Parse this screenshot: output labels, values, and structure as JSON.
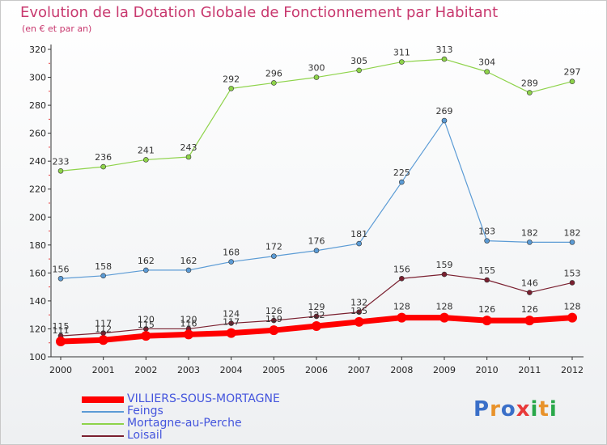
{
  "title": "Evolution de la Dotation Globale de Fonctionnement par Habitant",
  "subtitle": "(en € et par an)",
  "logo": {
    "text": "Proxiti",
    "letter_colors": [
      "#3a6fc8",
      "#e8922a",
      "#3a6fc8",
      "#e83a3a",
      "#2aa84a",
      "#e8922a",
      "#2aa84a"
    ]
  },
  "chart_data": {
    "type": "line",
    "title": "Evolution de la Dotation Globale de Fonctionnement par Habitant",
    "subtitle": "(en € et par an)",
    "x": [
      "2000",
      "2001",
      "2002",
      "2003",
      "2004",
      "2005",
      "2006",
      "2007",
      "2008",
      "2009",
      "2010",
      "2011",
      "2012"
    ],
    "ylim": [
      100,
      320
    ],
    "yticks": [
      100,
      120,
      140,
      160,
      180,
      200,
      220,
      240,
      260,
      280,
      300,
      320
    ],
    "grid": false,
    "legend_position": "bottom-left",
    "series": [
      {
        "name": "VILLIERS-SOUS-MORTAGNE",
        "color": "#ff0000",
        "style": "thick",
        "values": [
          111,
          112,
          115,
          116,
          117,
          119,
          122,
          125,
          128,
          128,
          126,
          126,
          128
        ],
        "labels": [
          "111",
          "112",
          "115",
          "116",
          "117",
          "119",
          "122",
          "125",
          "128",
          "128",
          "126",
          "126",
          "128"
        ]
      },
      {
        "name": "Feings",
        "color": "#5b9bd5",
        "style": "thin",
        "values": [
          156,
          158,
          162,
          162,
          168,
          172,
          176,
          181,
          225,
          269,
          183,
          182,
          182
        ],
        "labels": [
          "156",
          "158",
          "162",
          "162",
          "168",
          "172",
          "176",
          "181",
          "225",
          "269",
          "183",
          "182",
          "182"
        ]
      },
      {
        "name": "Mortagne-au-Perche",
        "color": "#8ed34a",
        "style": "thin",
        "values": [
          233,
          236,
          241,
          243,
          292,
          296,
          300,
          305,
          311,
          313,
          304,
          289,
          297
        ],
        "labels": [
          "233",
          "236",
          "241",
          "243",
          "292",
          "296",
          "300",
          "305",
          "311",
          "313",
          "304",
          "289",
          "297"
        ]
      },
      {
        "name": "Loisail",
        "color": "#7a2030",
        "style": "thin",
        "values": [
          115,
          117,
          120,
          120,
          124,
          126,
          129,
          132,
          156,
          159,
          155,
          146,
          153
        ],
        "labels": [
          "115",
          "117",
          "120",
          "120",
          "124",
          "126",
          "129",
          "132",
          "156",
          "159",
          "155",
          "146",
          "153"
        ]
      }
    ]
  }
}
